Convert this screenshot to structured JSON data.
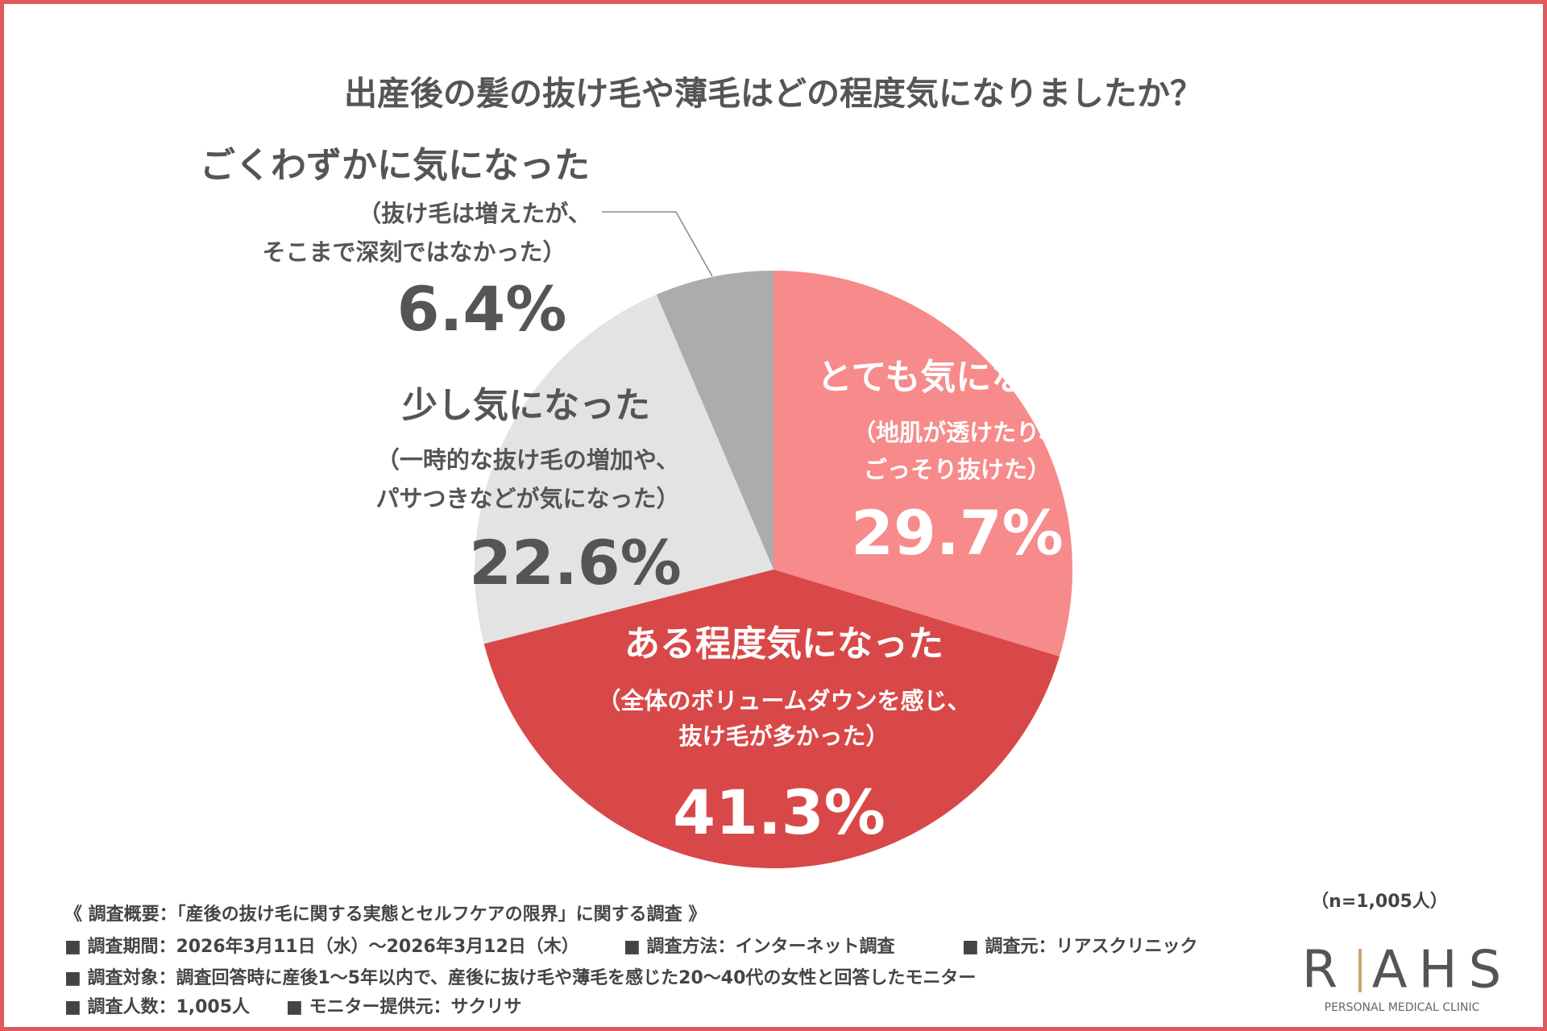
{
  "chart_data": {
    "type": "pie",
    "title": "出産後の髪の抜け毛や薄毛はどの程度気になりましたか？",
    "categories": [
      "とても気になった",
      "ある程度気になった",
      "少し気になった",
      "ごくわずかに気になった"
    ],
    "descriptions": [
      [
        "（地肌が透けたり、",
        "ごっそり抜けた）"
      ],
      [
        "（全体のボリュームダウンを感じ、",
        "抜け毛が多かった）"
      ],
      [
        "（一時的な抜け毛の増加や、",
        "パサつきなどが気になった）"
      ],
      [
        "（抜け毛は増えたが、",
        "そこまで深刻ではなかった）"
      ]
    ],
    "values": [
      29.7,
      41.3,
      22.6,
      6.4
    ],
    "value_labels": [
      "29.7%",
      "41.3%",
      "22.6%",
      "6.4%"
    ],
    "colors": [
      "#f78a8a",
      "#d94848",
      "#e3e3e3",
      "#acacac"
    ],
    "text_colors": [
      "#ffffff",
      "#ffffff",
      "#555555",
      "#555555"
    ],
    "sample_size": "（n=1,005人）"
  },
  "notes": [
    [
      "《 調査概要：「産後の抜け毛に関する実態とセルフケアの限界」に関する調査 》"
    ],
    [
      "■ 調査期間：2026年3月11日（水）～2026年3月12日（木）",
      "■ 調査方法：インターネット調査",
      "■ 調査元：リアスクリニック"
    ],
    [
      "■ 調査対象：調査回答時に産後1～5年以内で、産後に抜け毛や薄毛を感じた20～40代の女性と回答したモニター"
    ],
    [
      "■ 調査人数：1,005人",
      "■ モニター提供元：サクリサ"
    ]
  ],
  "logo": {
    "left": "R",
    "right": "AHS",
    "tagline": "PERSONAL MEDICAL CLINIC"
  }
}
